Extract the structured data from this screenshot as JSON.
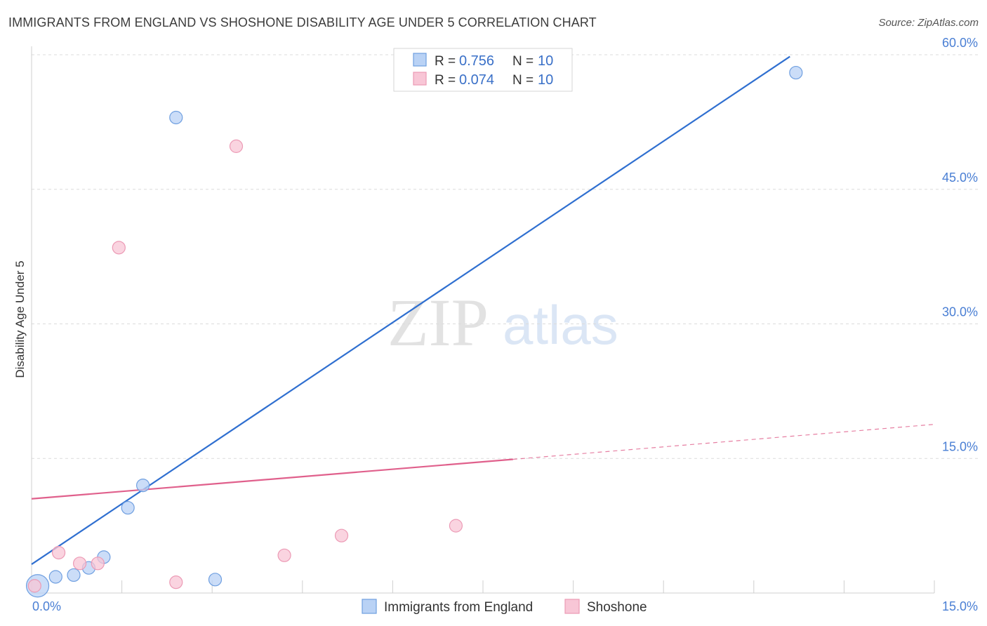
{
  "header": {
    "title": "IMMIGRANTS FROM ENGLAND VS SHOSHONE DISABILITY AGE UNDER 5 CORRELATION CHART",
    "source": "Source: ZipAtlas.com"
  },
  "watermark": {
    "zip": "ZIP",
    "atlas": "atlas"
  },
  "chart_data": {
    "type": "scatter",
    "title": "IMMIGRANTS FROM ENGLAND VS SHOSHONE DISABILITY AGE UNDER 5 CORRELATION CHART",
    "xlabel": "",
    "ylabel": "Disability Age Under 5",
    "xlim": [
      0,
      15
    ],
    "ylim": [
      0,
      60
    ],
    "x_tick_labels": [
      "0.0%",
      "15.0%"
    ],
    "y_ticks": [
      15,
      30,
      45,
      60
    ],
    "y_tick_labels": [
      "15.0%",
      "30.0%",
      "45.0%",
      "60.0%"
    ],
    "grid": true,
    "legend_position": "top-center",
    "series": [
      {
        "name": "Immigrants from England",
        "color": "#6f9fe0",
        "fill": "#b9d2f5",
        "line_color": "#2f6fd0",
        "r_label": "R =",
        "r_value": "0.756",
        "n_label": "N =",
        "n_value": "10",
        "points": [
          {
            "x": 0.1,
            "y": 0.8,
            "size": 16
          },
          {
            "x": 0.4,
            "y": 1.8,
            "size": 9
          },
          {
            "x": 0.7,
            "y": 2.0,
            "size": 9
          },
          {
            "x": 0.95,
            "y": 2.8,
            "size": 9
          },
          {
            "x": 1.2,
            "y": 4.0,
            "size": 9
          },
          {
            "x": 1.6,
            "y": 9.5,
            "size": 9
          },
          {
            "x": 1.85,
            "y": 12.0,
            "size": 9
          },
          {
            "x": 2.4,
            "y": 53.0,
            "size": 9
          },
          {
            "x": 3.05,
            "y": 1.5,
            "size": 9
          },
          {
            "x": 12.7,
            "y": 58.0,
            "size": 9
          }
        ],
        "trend": {
          "x": [
            0.0,
            12.6
          ],
          "y": [
            3.2,
            59.8
          ],
          "dashed_x": null
        }
      },
      {
        "name": "Shoshone",
        "color": "#ec9ab5",
        "fill": "#f8c6d6",
        "line_color": "#e0608c",
        "r_label": "R =",
        "r_value": "0.074",
        "n_label": "N =",
        "n_value": "10",
        "points": [
          {
            "x": 0.05,
            "y": 0.8,
            "size": 9
          },
          {
            "x": 0.45,
            "y": 4.5,
            "size": 9
          },
          {
            "x": 0.8,
            "y": 3.3,
            "size": 9
          },
          {
            "x": 1.1,
            "y": 3.3,
            "size": 9
          },
          {
            "x": 1.45,
            "y": 38.5,
            "size": 9
          },
          {
            "x": 2.4,
            "y": 1.2,
            "size": 9
          },
          {
            "x": 3.4,
            "y": 49.8,
            "size": 9
          },
          {
            "x": 4.2,
            "y": 4.2,
            "size": 9
          },
          {
            "x": 5.15,
            "y": 6.4,
            "size": 9
          },
          {
            "x": 7.05,
            "y": 7.5,
            "size": 9
          }
        ],
        "trend": {
          "x": [
            0.0,
            8.0
          ],
          "y": [
            10.5,
            14.9
          ],
          "dashed_x": [
            8.0,
            15.0
          ],
          "dashed_y": [
            14.9,
            18.8
          ]
        }
      }
    ]
  }
}
